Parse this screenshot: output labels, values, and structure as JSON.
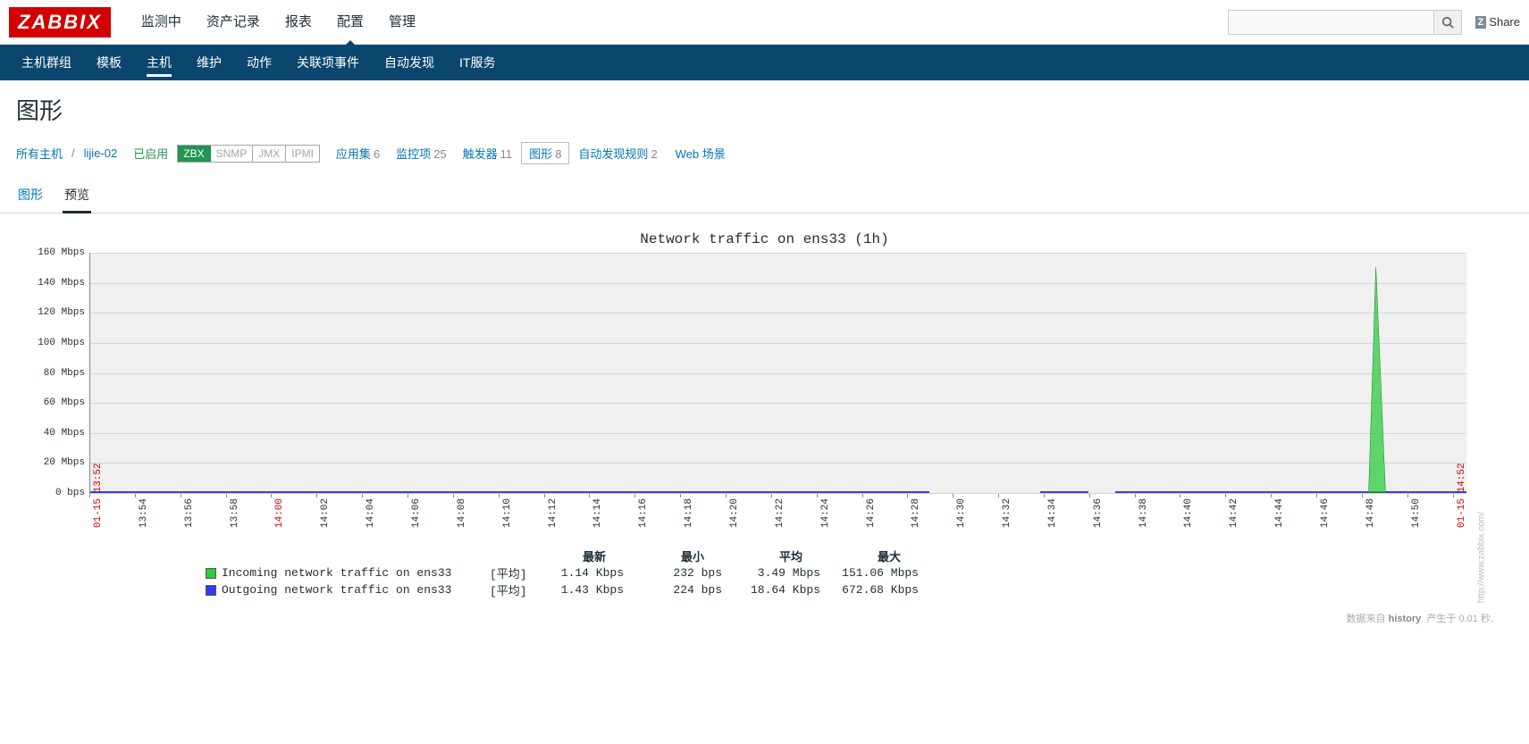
{
  "logo": "ZABBIX",
  "topnav": {
    "items": [
      "监测中",
      "资产记录",
      "报表",
      "配置",
      "管理"
    ],
    "active_index": 3
  },
  "share_label": "Share",
  "subnav": {
    "items": [
      "主机群组",
      "模板",
      "主机",
      "维护",
      "动作",
      "关联项事件",
      "自动发现",
      "IT服务"
    ],
    "active_index": 2
  },
  "page_title": "图形",
  "breadcrumb": {
    "all_hosts": "所有主机",
    "host": "lijie-02",
    "enabled": "已启用",
    "protocols": [
      {
        "label": "ZBX",
        "on": true
      },
      {
        "label": "SNMP",
        "on": false
      },
      {
        "label": "JMX",
        "on": false
      },
      {
        "label": "IPMI",
        "on": false
      }
    ],
    "counts": [
      {
        "label": "应用集",
        "n": "6"
      },
      {
        "label": "监控项",
        "n": "25"
      },
      {
        "label": "触发器",
        "n": "11"
      }
    ],
    "graph_box": {
      "label": "图形",
      "n": "8"
    },
    "discovery": {
      "label": "自动发现规则",
      "n": "2"
    },
    "web": "Web 场景"
  },
  "tabs": {
    "items": [
      "图形",
      "预览"
    ],
    "active_index": 1
  },
  "chart": {
    "title": "Network traffic on ens33 (1h)",
    "y_ticks": [
      {
        "label": "160 Mbps",
        "pct": 0
      },
      {
        "label": "140 Mbps",
        "pct": 12.5
      },
      {
        "label": "120 Mbps",
        "pct": 25
      },
      {
        "label": "100 Mbps",
        "pct": 37.5
      },
      {
        "label": "80 Mbps",
        "pct": 50
      },
      {
        "label": "60 Mbps",
        "pct": 62.5
      },
      {
        "label": "40 Mbps",
        "pct": 75
      },
      {
        "label": "20 Mbps",
        "pct": 87.5
      },
      {
        "label": "0 bps",
        "pct": 100
      }
    ],
    "x_ticks": [
      {
        "label": "01-15 13:52",
        "pct": 0,
        "red": true
      },
      {
        "label": "13:54",
        "pct": 3.3
      },
      {
        "label": "13:56",
        "pct": 6.6
      },
      {
        "label": "13:58",
        "pct": 9.9
      },
      {
        "label": "14:00",
        "pct": 13.2,
        "red": true
      },
      {
        "label": "14:02",
        "pct": 16.5
      },
      {
        "label": "14:04",
        "pct": 19.8
      },
      {
        "label": "14:06",
        "pct": 23.1
      },
      {
        "label": "14:08",
        "pct": 26.4
      },
      {
        "label": "14:10",
        "pct": 29.7
      },
      {
        "label": "14:12",
        "pct": 33.0
      },
      {
        "label": "14:14",
        "pct": 36.3
      },
      {
        "label": "14:16",
        "pct": 39.6
      },
      {
        "label": "14:18",
        "pct": 42.9
      },
      {
        "label": "14:20",
        "pct": 46.2
      },
      {
        "label": "14:22",
        "pct": 49.5
      },
      {
        "label": "14:24",
        "pct": 52.8
      },
      {
        "label": "14:26",
        "pct": 56.1
      },
      {
        "label": "14:28",
        "pct": 59.4
      },
      {
        "label": "14:30",
        "pct": 62.7
      },
      {
        "label": "14:32",
        "pct": 66.0
      },
      {
        "label": "14:34",
        "pct": 69.3
      },
      {
        "label": "14:36",
        "pct": 72.6
      },
      {
        "label": "14:38",
        "pct": 75.9
      },
      {
        "label": "14:40",
        "pct": 79.2
      },
      {
        "label": "14:42",
        "pct": 82.5
      },
      {
        "label": "14:44",
        "pct": 85.8
      },
      {
        "label": "14:46",
        "pct": 89.1
      },
      {
        "label": "14:48",
        "pct": 92.4
      },
      {
        "label": "14:50",
        "pct": 95.7
      },
      {
        "label": "01-15 14:52",
        "pct": 99.0,
        "red": true
      }
    ],
    "series": [
      {
        "name": "Incoming network traffic on ens33",
        "color": "#2ecc40",
        "agg": "[平均]",
        "latest": "1.14 Kbps",
        "min": "232 bps",
        "avg": "3.49 Mbps",
        "max": "151.06 Mbps"
      },
      {
        "name": "Outgoing network traffic on ens33",
        "color": "#3838ff",
        "agg": "[平均]",
        "latest": "1.43 Kbps",
        "min": "224 bps",
        "avg": "18.64 Kbps",
        "max": "672.68 Kbps"
      }
    ],
    "spike": {
      "left_pct": 91.5,
      "width_pct": 3.5,
      "height_pct": 94,
      "color": "#2ecc40",
      "border": "#1a8a28"
    },
    "gaps": [
      {
        "left_pct": 61,
        "width_pct": 8
      },
      {
        "left_pct": 72.5,
        "width_pct": 2
      }
    ],
    "watermark": "http://www.zabbix.com/",
    "legend_headers": [
      "最新",
      "最小",
      "平均",
      "最大"
    ]
  },
  "footer": {
    "prefix": "数据来自 ",
    "bold": "history",
    "suffix": ". 产生于 0.01 秒."
  }
}
